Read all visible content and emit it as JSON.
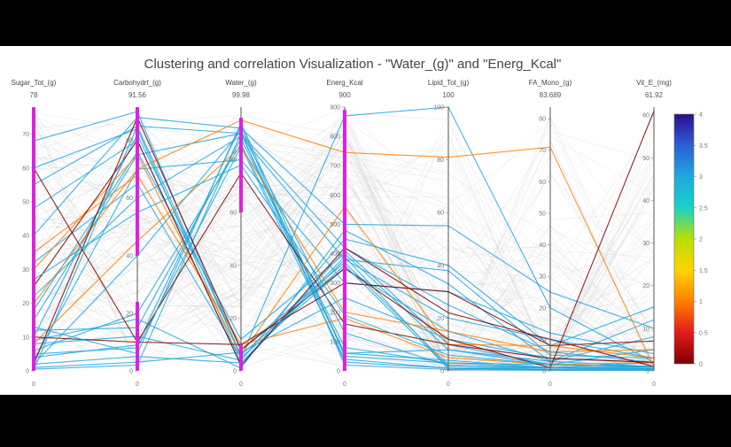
{
  "chart_data": {
    "type": "parallel-coordinates",
    "title": "Clustering and correlation Visualization - \"Water_(g)\" and \"Energ_Kcal\"",
    "axes": [
      {
        "name": "Sugar_Tot_(g)",
        "range": [
          0,
          78
        ],
        "max_label": "78",
        "ticks": [
          0,
          10,
          20,
          30,
          40,
          50,
          60,
          70
        ],
        "brush": [
          0,
          78
        ]
      },
      {
        "name": "Carbohydrt_(g)",
        "range": [
          0,
          91.56
        ],
        "max_label": "91.56",
        "ticks": [
          0,
          20,
          40,
          60,
          80
        ],
        "brush_ranges": [
          [
            0,
            24
          ],
          [
            40,
            91.56
          ]
        ]
      },
      {
        "name": "Water_(g)",
        "range": [
          0,
          99.98
        ],
        "max_label": "99.98",
        "ticks": [
          0,
          20,
          40,
          60,
          80
        ],
        "brush_ranges": [
          [
            0,
            10
          ],
          [
            60,
            96
          ]
        ]
      },
      {
        "name": "Energ_Kcal",
        "range": [
          0,
          900
        ],
        "max_label": "900",
        "ticks": [
          0,
          100,
          200,
          300,
          400,
          500,
          600,
          700,
          800,
          900
        ],
        "brush": [
          0,
          890
        ]
      },
      {
        "name": "Lipid_Tot_(g)",
        "range": [
          0,
          100
        ],
        "max_label": "100",
        "ticks": [
          0,
          20,
          40,
          60,
          80,
          100
        ]
      },
      {
        "name": "FA_Mono_(g)",
        "range": [
          0,
          83.689
        ],
        "max_label": "83.689",
        "ticks": [
          0,
          10,
          20,
          30,
          40,
          50,
          60,
          70,
          80
        ]
      },
      {
        "name": "Vit_E_(mg)",
        "range": [
          0,
          61.92
        ],
        "max_label": "61.92",
        "ticks": [
          0,
          10,
          20,
          30,
          40,
          50,
          60
        ]
      }
    ],
    "colorscale": {
      "range": [
        0,
        4
      ],
      "ticks": [
        "0",
        "0.5",
        "1",
        "1.5",
        "2",
        "2.5",
        "3",
        "3.5",
        "4"
      ],
      "stops": [
        "#7f0000",
        "#e31a1c",
        "#ff7f00",
        "#ffd400",
        "#b8e000",
        "#19d3c5",
        "#1ea8e0",
        "#2a5fd6",
        "#2c0e8e"
      ]
    },
    "brush_color": "#e020e0",
    "highlighted_lines": [
      {
        "cluster": 3,
        "values": [
          68,
          90,
          5,
          870,
          100,
          20,
          2
        ]
      },
      {
        "cluster": 3,
        "values": [
          55,
          85,
          90,
          60,
          8,
          3,
          1
        ]
      },
      {
        "cluster": 3,
        "values": [
          40,
          88,
          92,
          500,
          55,
          25,
          10
        ]
      },
      {
        "cluster": 3,
        "values": [
          12,
          15,
          88,
          80,
          3,
          2,
          5
        ]
      },
      {
        "cluster": 3,
        "values": [
          5,
          8,
          85,
          40,
          1,
          1,
          2
        ]
      },
      {
        "cluster": 3,
        "values": [
          8,
          12,
          4,
          450,
          40,
          8,
          15
        ]
      },
      {
        "cluster": 3,
        "values": [
          2,
          5,
          3,
          380,
          20,
          10,
          3
        ]
      },
      {
        "cluster": 3,
        "values": [
          3,
          70,
          80,
          300,
          30,
          12,
          4
        ]
      },
      {
        "cluster": 3,
        "values": [
          15,
          75,
          90,
          420,
          25,
          6,
          2
        ]
      },
      {
        "cluster": 3,
        "values": [
          48,
          80,
          2,
          410,
          10,
          2,
          1
        ]
      },
      {
        "cluster": 3,
        "values": [
          22,
          60,
          89,
          380,
          38,
          5,
          3
        ]
      },
      {
        "cluster": 3,
        "values": [
          1,
          3,
          7,
          250,
          12,
          4,
          2
        ]
      },
      {
        "cluster": 3,
        "values": [
          6,
          20,
          86,
          60,
          4,
          1,
          1
        ]
      },
      {
        "cluster": 3,
        "values": [
          32,
          65,
          5,
          350,
          15,
          3,
          8
        ]
      },
      {
        "cluster": 3,
        "values": [
          9,
          18,
          1,
          480,
          33,
          3,
          12
        ]
      },
      {
        "cluster": 3,
        "values": [
          0.5,
          2,
          90,
          30,
          1,
          0.5,
          0.3
        ]
      },
      {
        "cluster": 3,
        "values": [
          10,
          82,
          8,
          370,
          2,
          1,
          0.5
        ]
      },
      {
        "cluster": 3,
        "values": [
          4,
          9,
          93,
          20,
          0.5,
          0.2,
          0.2
        ]
      },
      {
        "cluster": 3,
        "values": [
          60,
          84,
          3,
          390,
          1,
          0.5,
          0.4
        ]
      },
      {
        "cluster": 3,
        "values": [
          18,
          76,
          12,
          400,
          8,
          2,
          1
        ]
      },
      {
        "cluster": 1,
        "values": [
          20,
          70,
          95,
          745,
          81,
          71,
          1
        ]
      },
      {
        "cluster": 1,
        "values": [
          30,
          75,
          6,
          560,
          10,
          8,
          3
        ]
      },
      {
        "cluster": 1,
        "values": [
          8,
          45,
          85,
          200,
          15,
          6,
          5
        ]
      },
      {
        "cluster": 1,
        "values": [
          35,
          68,
          10,
          180,
          5,
          2,
          2
        ]
      },
      {
        "cluster": 0,
        "values": [
          2,
          88,
          8,
          350,
          12,
          1,
          61
        ]
      },
      {
        "cluster": 0,
        "values": [
          25,
          80,
          2,
          420,
          22,
          10,
          1
        ]
      },
      {
        "cluster": 0,
        "values": [
          60,
          10,
          10,
          300,
          30,
          8,
          7
        ]
      },
      {
        "cluster": 0,
        "values": [
          10,
          10,
          75,
          160,
          10,
          4,
          2
        ]
      },
      {
        "cluster": 3,
        "values": [
          27,
          55,
          78,
          190,
          6,
          2,
          1
        ]
      },
      {
        "cluster": 3,
        "values": [
          2,
          40,
          91,
          130,
          2,
          1,
          0.5
        ]
      },
      {
        "cluster": 3,
        "values": [
          0.2,
          85,
          6,
          360,
          1,
          0.3,
          0.1
        ]
      },
      {
        "cluster": 3,
        "values": [
          13,
          6,
          94,
          50,
          3,
          1,
          0.8
        ]
      }
    ]
  }
}
